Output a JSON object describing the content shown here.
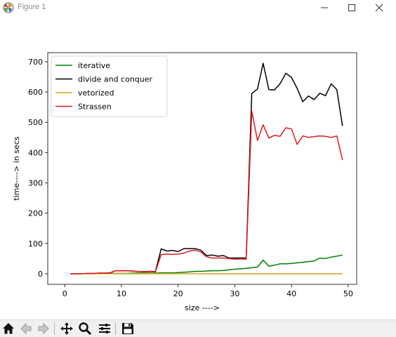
{
  "window": {
    "title": "Figure 1",
    "icons": [
      "matplotlib-icon",
      "minimize-icon",
      "maximize-icon",
      "close-icon"
    ]
  },
  "toolbar": {
    "buttons": [
      "home-icon",
      "back-icon",
      "forward-icon",
      "pan-icon",
      "zoom-icon",
      "configure-subplots-icon",
      "save-icon"
    ]
  },
  "chart_data": {
    "type": "line",
    "title": "",
    "xlabel": "size ---->",
    "ylabel": "time----> in secs",
    "xlim": [
      -3,
      51.5
    ],
    "ylim": [
      -35,
      730
    ],
    "xticks": [
      0,
      10,
      20,
      30,
      40,
      50
    ],
    "yticks": [
      0,
      100,
      200,
      300,
      400,
      500,
      600,
      700
    ],
    "grid": false,
    "legend_position": "top-left",
    "x": [
      1,
      2,
      3,
      4,
      5,
      6,
      7,
      8,
      9,
      10,
      11,
      12,
      13,
      14,
      15,
      16,
      17,
      18,
      19,
      20,
      21,
      22,
      23,
      24,
      25,
      26,
      27,
      28,
      29,
      30,
      31,
      32,
      33,
      34,
      35,
      36,
      37,
      38,
      39,
      40,
      41,
      42,
      43,
      44,
      45,
      46,
      47,
      48,
      49
    ],
    "series": [
      {
        "name": "iterative",
        "color": "#008000",
        "values": [
          0,
          0,
          0,
          0,
          0,
          1,
          1,
          1,
          1,
          1,
          1,
          2,
          2,
          2,
          2,
          2,
          3,
          3,
          3,
          4,
          5,
          6,
          8,
          8,
          9,
          10,
          10,
          11,
          13,
          15,
          16,
          18,
          20,
          22,
          45,
          25,
          28,
          33,
          33,
          34,
          36,
          38,
          40,
          42,
          52,
          50,
          55,
          58,
          62
        ]
      },
      {
        "name": "divide and conquer",
        "color": "#000000",
        "values": [
          0,
          0,
          0,
          1,
          1,
          2,
          2,
          3,
          10,
          10,
          10,
          9,
          7,
          7,
          8,
          7,
          82,
          75,
          77,
          73,
          83,
          83,
          83,
          78,
          60,
          62,
          58,
          60,
          52,
          52,
          52,
          52,
          595,
          610,
          695,
          608,
          607,
          628,
          662,
          648,
          612,
          568,
          587,
          575,
          596,
          588,
          627,
          608,
          488
        ]
      },
      {
        "name": "vetorized",
        "color": "#DAA520",
        "values": [
          0,
          0,
          0,
          0,
          0,
          0,
          0,
          0,
          0,
          0,
          0,
          0,
          0,
          0,
          0,
          0,
          0,
          0,
          0,
          0,
          0,
          0,
          0,
          0,
          0,
          0,
          0,
          0,
          0,
          0,
          0,
          0,
          0,
          0,
          0,
          0,
          0,
          0,
          0,
          0,
          0,
          0,
          0,
          0,
          0,
          0,
          0,
          0,
          0
        ]
      },
      {
        "name": "Strassen",
        "color": "#e31a1c",
        "values": [
          0,
          0,
          0,
          1,
          1,
          2,
          2,
          2,
          10,
          10,
          10,
          9,
          7,
          6,
          7,
          6,
          63,
          65,
          64,
          65,
          68,
          75,
          78,
          72,
          56,
          52,
          52,
          52,
          50,
          48,
          49,
          48,
          537,
          440,
          492,
          448,
          457,
          454,
          482,
          478,
          427,
          455,
          450,
          453,
          455,
          454,
          450,
          455,
          375
        ]
      }
    ]
  }
}
